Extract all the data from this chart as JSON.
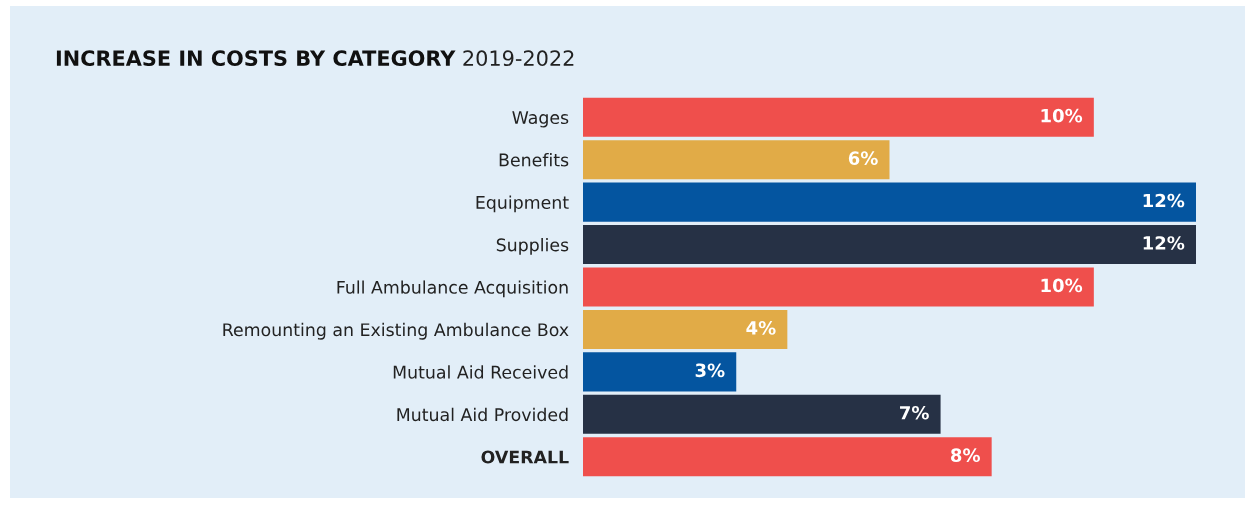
{
  "chart_data": {
    "type": "bar",
    "orientation": "horizontal",
    "title": "INCREASE IN COSTS BY CATEGORY",
    "subtitle": "2019-2022",
    "categories": [
      "Wages",
      "Benefits",
      "Equipment",
      "Supplies",
      "Full Ambulance Acquisition",
      "Remounting an Existing Ambulance Box",
      "Mutual Aid Received",
      "Mutual Aid Provided",
      "OVERALL"
    ],
    "values": [
      10,
      6,
      12,
      12,
      10,
      4,
      3,
      7,
      8
    ],
    "value_labels": [
      "10%",
      "6%",
      "12%",
      "12%",
      "10%",
      "4%",
      "3%",
      "7%",
      "8%"
    ],
    "colors": [
      "#ef4f4c",
      "#e1ab47",
      "#0455a0",
      "#263145",
      "#ef4f4c",
      "#e1ab47",
      "#0455a0",
      "#263145",
      "#ef4f4c"
    ],
    "xlim": [
      0,
      12
    ],
    "grid": false,
    "legend": false
  }
}
